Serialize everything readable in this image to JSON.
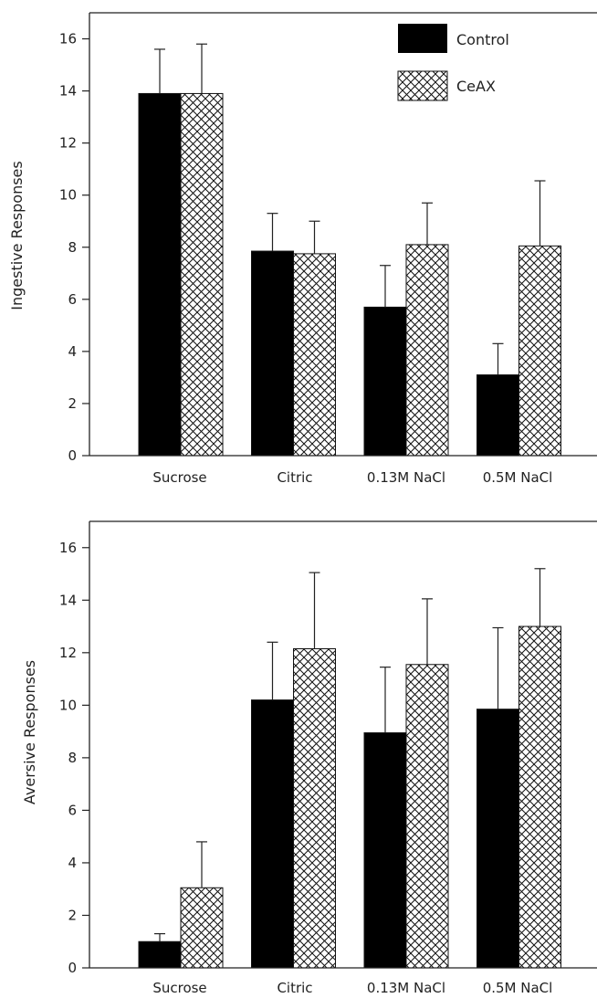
{
  "chart_data": [
    {
      "type": "bar",
      "panel": "top",
      "ylabel": "Ingestive Responses",
      "ylim": [
        0,
        17
      ],
      "yticks": [
        0,
        2,
        4,
        6,
        8,
        10,
        12,
        14,
        16
      ],
      "categories": [
        "Sucrose",
        "Citric",
        "0.13M  NaCl",
        "0.5M  NaCl"
      ],
      "series": [
        {
          "name": "Control",
          "values": [
            13.9,
            7.85,
            5.7,
            3.1
          ],
          "errors": [
            1.7,
            1.45,
            1.6,
            1.2
          ],
          "fill": "#000000"
        },
        {
          "name": "CeAX",
          "values": [
            13.9,
            7.75,
            8.1,
            8.05
          ],
          "errors": [
            1.9,
            1.25,
            1.6,
            2.5
          ],
          "fill": "crosshatch"
        }
      ],
      "legend": {
        "position": "top-right",
        "entries": [
          "Control",
          "CeAX"
        ]
      }
    },
    {
      "type": "bar",
      "panel": "bottom",
      "ylabel": "Aversive Responses",
      "ylim": [
        0,
        17
      ],
      "yticks": [
        0,
        2,
        4,
        6,
        8,
        10,
        12,
        14,
        16
      ],
      "categories": [
        "Sucrose",
        "Citric",
        "0.13M  NaCl",
        "0.5M  NaCl"
      ],
      "series": [
        {
          "name": "Control",
          "values": [
            1.0,
            10.2,
            8.95,
            9.85
          ],
          "errors": [
            0.3,
            2.2,
            2.5,
            3.1
          ],
          "fill": "#000000"
        },
        {
          "name": "CeAX",
          "values": [
            3.05,
            12.15,
            11.55,
            13.0
          ],
          "errors": [
            1.75,
            2.9,
            2.5,
            2.2
          ],
          "fill": "crosshatch"
        }
      ]
    }
  ],
  "colors": {
    "control": "#000000",
    "axis": "#222222",
    "hatch": "#111111"
  }
}
